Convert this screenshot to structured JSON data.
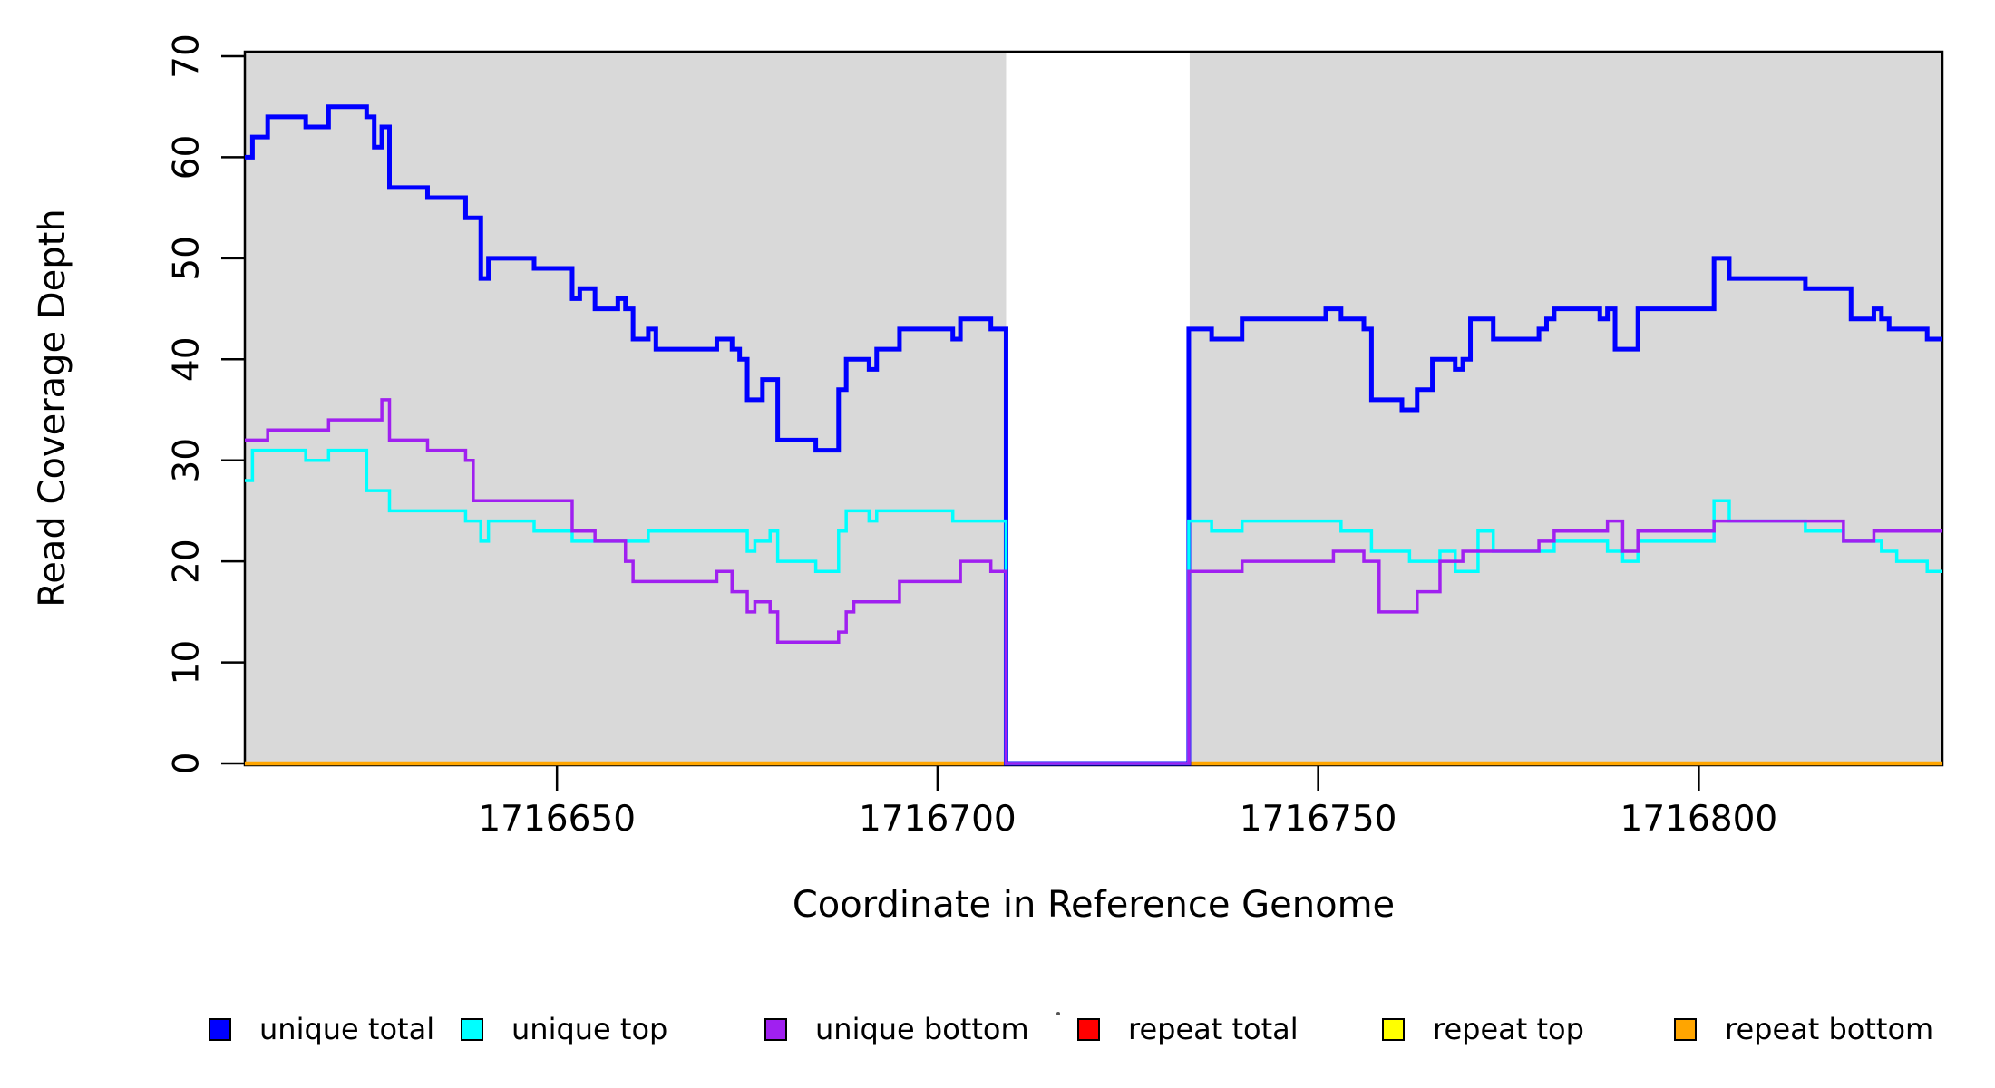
{
  "figure": {
    "x_axis_title": "Coordinate in Reference Genome",
    "y_axis_title": "Read Coverage Depth"
  },
  "chart_data": {
    "type": "line",
    "style": "step",
    "title": "",
    "xlabel": "Coordinate in Reference Genome",
    "ylabel": "Read Coverage Depth",
    "xlim": [
      1716609,
      1716832
    ],
    "ylim": [
      0,
      70
    ],
    "x_ticks": [
      1716650,
      1716700,
      1716750,
      1716800
    ],
    "y_ticks": [
      0,
      10,
      20,
      30,
      40,
      50,
      60,
      70
    ],
    "grid": false,
    "legend_position": "bottom",
    "plot_background": "#ffffff",
    "shaded_regions": [
      {
        "x0": 1716609,
        "x1": 1716709,
        "color": "#D9D9D9"
      },
      {
        "x0": 1716733,
        "x1": 1716832,
        "color": "#D9D9D9"
      }
    ],
    "uncovered_gap": {
      "x0": 1716709,
      "x1": 1716733,
      "depth": 0
    },
    "series": [
      {
        "name": "unique total",
        "color": "#0000FF",
        "values": [
          [
            1716609,
            60
          ],
          [
            1716610,
            62
          ],
          [
            1716612,
            64
          ],
          [
            1716617,
            63
          ],
          [
            1716620,
            65
          ],
          [
            1716625,
            64
          ],
          [
            1716626,
            61
          ],
          [
            1716627,
            63
          ],
          [
            1716628,
            57
          ],
          [
            1716633,
            56
          ],
          [
            1716638,
            54
          ],
          [
            1716640,
            48
          ],
          [
            1716641,
            50
          ],
          [
            1716647,
            49
          ],
          [
            1716652,
            46
          ],
          [
            1716653,
            47
          ],
          [
            1716655,
            45
          ],
          [
            1716658,
            46
          ],
          [
            1716659,
            45
          ],
          [
            1716660,
            42
          ],
          [
            1716662,
            43
          ],
          [
            1716663,
            41
          ],
          [
            1716671,
            42
          ],
          [
            1716673,
            41
          ],
          [
            1716674,
            40
          ],
          [
            1716675,
            36
          ],
          [
            1716677,
            38
          ],
          [
            1716679,
            32
          ],
          [
            1716684,
            31
          ],
          [
            1716687,
            37
          ],
          [
            1716688,
            40
          ],
          [
            1716691,
            39
          ],
          [
            1716692,
            41
          ],
          [
            1716695,
            43
          ],
          [
            1716702,
            42
          ],
          [
            1716703,
            44
          ],
          [
            1716707,
            43
          ],
          [
            1716709,
            0
          ],
          [
            1716733,
            43
          ],
          [
            1716736,
            42
          ],
          [
            1716740,
            44
          ],
          [
            1716751,
            45
          ],
          [
            1716753,
            44
          ],
          [
            1716756,
            43
          ],
          [
            1716757,
            36
          ],
          [
            1716761,
            35
          ],
          [
            1716763,
            37
          ],
          [
            1716765,
            40
          ],
          [
            1716768,
            39
          ],
          [
            1716769,
            40
          ],
          [
            1716770,
            44
          ],
          [
            1716773,
            42
          ],
          [
            1716779,
            43
          ],
          [
            1716780,
            44
          ],
          [
            1716781,
            45
          ],
          [
            1716787,
            44
          ],
          [
            1716788,
            45
          ],
          [
            1716789,
            41
          ],
          [
            1716792,
            45
          ],
          [
            1716802,
            50
          ],
          [
            1716804,
            48
          ],
          [
            1716814,
            47
          ],
          [
            1716820,
            44
          ],
          [
            1716823,
            45
          ],
          [
            1716824,
            44
          ],
          [
            1716825,
            43
          ],
          [
            1716830,
            42
          ],
          [
            1716832,
            42
          ]
        ]
      },
      {
        "name": "unique top",
        "color": "#00FFFF",
        "values": [
          [
            1716609,
            28
          ],
          [
            1716610,
            31
          ],
          [
            1716617,
            30
          ],
          [
            1716620,
            31
          ],
          [
            1716625,
            27
          ],
          [
            1716628,
            25
          ],
          [
            1716638,
            24
          ],
          [
            1716640,
            22
          ],
          [
            1716641,
            24
          ],
          [
            1716647,
            23
          ],
          [
            1716652,
            22
          ],
          [
            1716662,
            23
          ],
          [
            1716675,
            21
          ],
          [
            1716676,
            22
          ],
          [
            1716678,
            23
          ],
          [
            1716679,
            20
          ],
          [
            1716684,
            19
          ],
          [
            1716687,
            23
          ],
          [
            1716688,
            25
          ],
          [
            1716691,
            24
          ],
          [
            1716692,
            25
          ],
          [
            1716702,
            24
          ],
          [
            1716709,
            0
          ],
          [
            1716733,
            24
          ],
          [
            1716736,
            23
          ],
          [
            1716740,
            24
          ],
          [
            1716753,
            23
          ],
          [
            1716757,
            21
          ],
          [
            1716762,
            20
          ],
          [
            1716766,
            21
          ],
          [
            1716768,
            19
          ],
          [
            1716771,
            23
          ],
          [
            1716773,
            21
          ],
          [
            1716781,
            22
          ],
          [
            1716788,
            21
          ],
          [
            1716790,
            20
          ],
          [
            1716792,
            22
          ],
          [
            1716802,
            26
          ],
          [
            1716804,
            24
          ],
          [
            1716814,
            23
          ],
          [
            1716819,
            22
          ],
          [
            1716824,
            21
          ],
          [
            1716826,
            20
          ],
          [
            1716830,
            19
          ],
          [
            1716832,
            19
          ]
        ]
      },
      {
        "name": "unique bottom",
        "color": "#A020F0",
        "values": [
          [
            1716609,
            32
          ],
          [
            1716612,
            33
          ],
          [
            1716620,
            34
          ],
          [
            1716627,
            36
          ],
          [
            1716628,
            32
          ],
          [
            1716633,
            31
          ],
          [
            1716638,
            30
          ],
          [
            1716639,
            26
          ],
          [
            1716652,
            23
          ],
          [
            1716655,
            22
          ],
          [
            1716659,
            20
          ],
          [
            1716660,
            18
          ],
          [
            1716671,
            19
          ],
          [
            1716673,
            17
          ],
          [
            1716675,
            15
          ],
          [
            1716676,
            16
          ],
          [
            1716678,
            15
          ],
          [
            1716679,
            12
          ],
          [
            1716687,
            13
          ],
          [
            1716688,
            15
          ],
          [
            1716689,
            16
          ],
          [
            1716695,
            18
          ],
          [
            1716703,
            20
          ],
          [
            1716707,
            19
          ],
          [
            1716709,
            0
          ],
          [
            1716733,
            19
          ],
          [
            1716740,
            20
          ],
          [
            1716752,
            21
          ],
          [
            1716756,
            20
          ],
          [
            1716758,
            15
          ],
          [
            1716763,
            17
          ],
          [
            1716766,
            20
          ],
          [
            1716769,
            21
          ],
          [
            1716779,
            22
          ],
          [
            1716781,
            23
          ],
          [
            1716788,
            24
          ],
          [
            1716790,
            21
          ],
          [
            1716792,
            23
          ],
          [
            1716802,
            24
          ],
          [
            1716819,
            22
          ],
          [
            1716823,
            23
          ],
          [
            1716832,
            23
          ]
        ]
      },
      {
        "name": "repeat total",
        "color": "#FF0000",
        "values": [
          [
            1716609,
            0
          ],
          [
            1716832,
            0
          ]
        ]
      },
      {
        "name": "repeat top",
        "color": "#FFFF00",
        "values": [
          [
            1716609,
            0
          ],
          [
            1716832,
            0
          ]
        ]
      },
      {
        "name": "repeat bottom",
        "color": "#FFA500",
        "values": [
          [
            1716609,
            0
          ],
          [
            1716832,
            0
          ]
        ]
      }
    ],
    "legend": {
      "items": [
        {
          "label": "unique total",
          "color": "#0000FF"
        },
        {
          "label": "unique top",
          "color": "#00FFFF"
        },
        {
          "label": "unique bottom",
          "color": "#A020F0"
        },
        {
          "label": "repeat total",
          "color": "#FF0000"
        },
        {
          "label": "repeat top",
          "color": "#FFFF00"
        },
        {
          "label": "repeat bottom",
          "color": "#FFA500"
        }
      ]
    }
  }
}
